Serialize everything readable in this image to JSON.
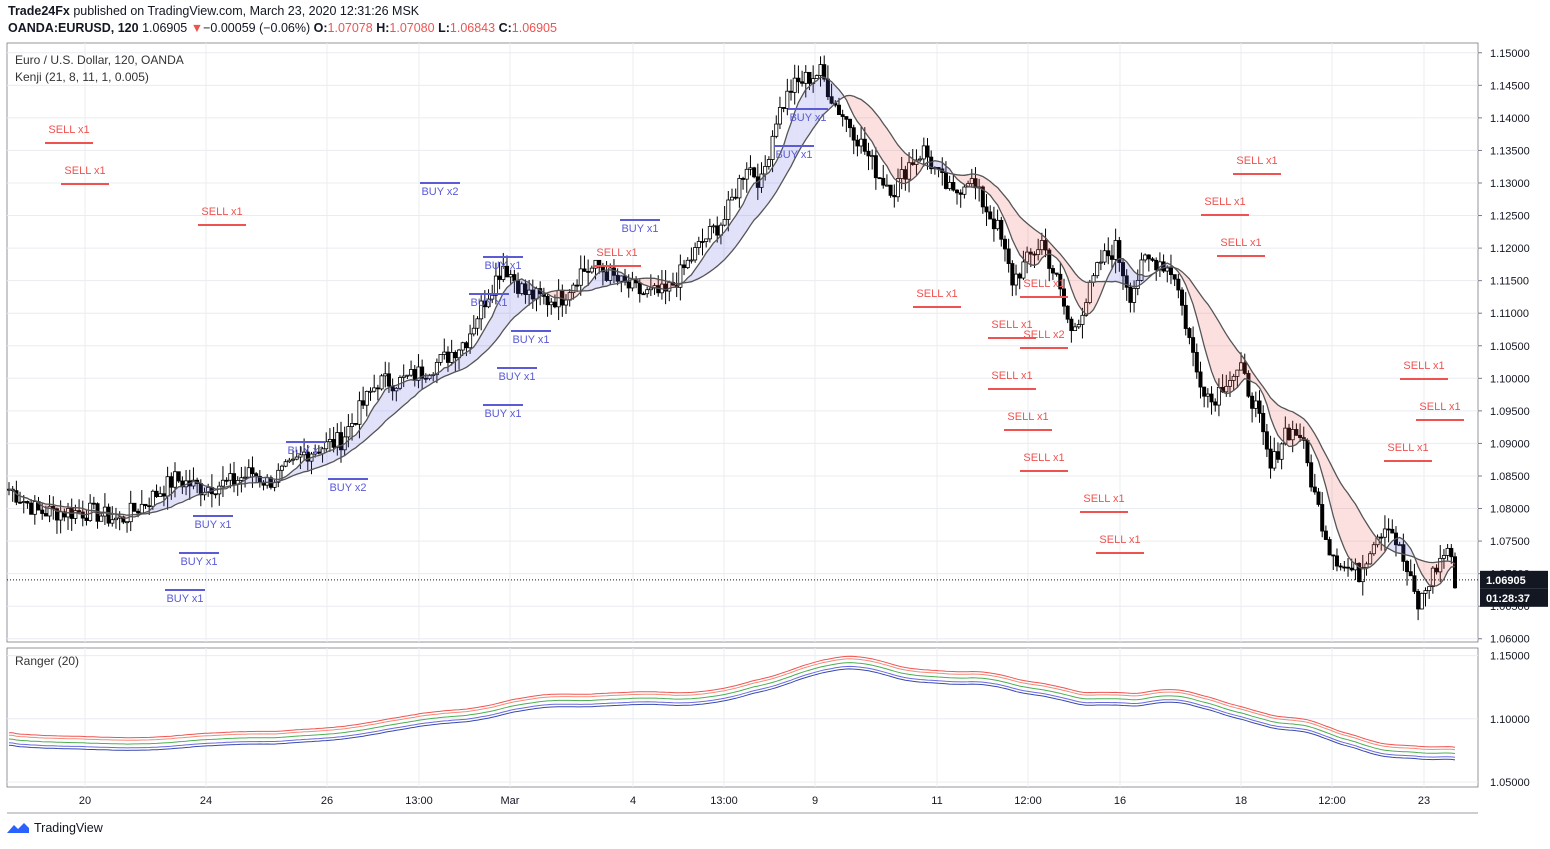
{
  "header": {
    "publisher": "Trade24Fx",
    "published_text": "published on TradingView.com, March 23, 2020 12:31:26 MSK",
    "symbol": "OANDA:EURUSD, 120",
    "last": "1.06905",
    "change_arrow": "▼",
    "change": "−0.00059 (−0.06%)",
    "o_label": "O:",
    "o_value": "1.07078",
    "h_label": "H:",
    "h_value": "1.07080",
    "l_label": "L:",
    "l_value": "1.06843",
    "c_label": "C:",
    "c_value": "1.06905"
  },
  "main_pane": {
    "title": "Euro / U.S. Dollar, 120, OANDA",
    "indicator": "Kenji (21, 8, 11, 1, 0.005)"
  },
  "sub_pane": {
    "indicator": "Ranger (20)"
  },
  "price_tag": {
    "value": "1.06905",
    "countdown": "01:28:37"
  },
  "footer": {
    "brand": "TradingView"
  },
  "colors": {
    "buy": "#5b5bd6",
    "sell": "#ef5350",
    "up_candle": "#ffffff",
    "down_candle": "#000000",
    "cloud_blue": "rgba(90,90,220,0.18)",
    "cloud_red": "rgba(239,83,80,0.18)",
    "cloud_green": "rgba(76,175,80,0.18)",
    "grid": "#e9ecf2"
  },
  "chart_data": [
    {
      "type": "candlestick",
      "title": "Euro / U.S. Dollar, 120, OANDA",
      "y_axis_ticks": [
        "1.15000",
        "1.14500",
        "1.14000",
        "1.13500",
        "1.13000",
        "1.12500",
        "1.12000",
        "1.11500",
        "1.11000",
        "1.10500",
        "1.10000",
        "1.09500",
        "1.09000",
        "1.08500",
        "1.08000",
        "1.07500",
        "1.07000",
        "1.06500",
        "1.06000"
      ],
      "ylim": [
        1.0595,
        1.1515
      ],
      "x_axis_ticks": [
        "20",
        "24",
        "26",
        "13:00",
        "Mar",
        "4",
        "13:00",
        "9",
        "11",
        "12:00",
        "16",
        "18",
        "12:00",
        "23"
      ],
      "last_price": 1.06905,
      "grid": true,
      "close_path": [
        [
          0,
          1.083
        ],
        [
          8,
          1.0795
        ],
        [
          22,
          1.0795
        ],
        [
          30,
          1.0782
        ],
        [
          36,
          1.0805
        ],
        [
          45,
          1.0845
        ],
        [
          52,
          1.0832
        ],
        [
          60,
          1.084
        ],
        [
          66,
          1.0855
        ],
        [
          70,
          1.084
        ],
        [
          77,
          1.0865
        ],
        [
          80,
          1.0885
        ],
        [
          85,
          1.0895
        ],
        [
          90,
          1.0905
        ],
        [
          96,
          1.096
        ],
        [
          100,
          1.0995
        ],
        [
          106,
          1.0995
        ],
        [
          112,
          1.101
        ],
        [
          118,
          1.103
        ],
        [
          124,
          1.106
        ],
        [
          128,
          1.111
        ],
        [
          134,
          1.1175
        ],
        [
          140,
          1.113
        ],
        [
          146,
          1.112
        ],
        [
          150,
          1.1125
        ],
        [
          155,
          1.1165
        ],
        [
          160,
          1.117
        ],
        [
          166,
          1.1145
        ],
        [
          172,
          1.113
        ],
        [
          178,
          1.113
        ],
        [
          182,
          1.116
        ],
        [
          188,
          1.121
        ],
        [
          194,
          1.1245
        ],
        [
          200,
          1.133
        ],
        [
          204,
          1.13
        ],
        [
          208,
          1.14
        ],
        [
          212,
          1.1445
        ],
        [
          216,
          1.146
        ],
        [
          220,
          1.147
        ],
        [
          224,
          1.142
        ],
        [
          228,
          1.139
        ],
        [
          232,
          1.135
        ],
        [
          236,
          1.131
        ],
        [
          240,
          1.129
        ],
        [
          244,
          1.133
        ],
        [
          248,
          1.135
        ],
        [
          252,
          1.131
        ],
        [
          256,
          1.128
        ],
        [
          260,
          1.131
        ],
        [
          264,
          1.127
        ],
        [
          268,
          1.123
        ],
        [
          272,
          1.115
        ],
        [
          276,
          1.118
        ],
        [
          280,
          1.121
        ],
        [
          284,
          1.115
        ],
        [
          288,
          1.107
        ],
        [
          292,
          1.112
        ],
        [
          296,
          1.118
        ],
        [
          300,
          1.12
        ],
        [
          304,
          1.113
        ],
        [
          308,
          1.118
        ],
        [
          312,
          1.118
        ],
        [
          316,
          1.116
        ],
        [
          318,
          1.111
        ],
        [
          322,
          1.101
        ],
        [
          326,
          1.0965
        ],
        [
          330,
          1.1
        ],
        [
          334,
          1.101
        ],
        [
          338,
          1.0955
        ],
        [
          342,
          1.086
        ],
        [
          346,
          1.092
        ],
        [
          350,
          1.0915
        ],
        [
          354,
          1.082
        ],
        [
          358,
          1.074
        ],
        [
          362,
          1.071
        ],
        [
          366,
          1.07
        ],
        [
          370,
          1.0755
        ],
        [
          374,
          1.078
        ],
        [
          378,
          1.072
        ],
        [
          382,
          1.065
        ],
        [
          386,
          1.07
        ],
        [
          390,
          1.074
        ],
        [
          392,
          1.069
        ]
      ],
      "signals": {
        "buy": [
          {
            "label": "BUY x1",
            "x": "24"
          },
          {
            "label": "BUY x1",
            "x": "24"
          },
          {
            "label": "BUY x1",
            "x": "24"
          },
          {
            "label": "BUY x2",
            "x": "26"
          },
          {
            "label": "BUY x1",
            "x": "26"
          },
          {
            "label": "BUY x1",
            "x": "Mar"
          },
          {
            "label": "BUY x1",
            "x": "Mar"
          },
          {
            "label": "BUY x1",
            "x": "Mar"
          },
          {
            "label": "BUY x1",
            "x": "Mar"
          },
          {
            "label": "BUY x1",
            "x": "Mar"
          },
          {
            "label": "BUY x1",
            "x": "4"
          },
          {
            "label": "BUY x2",
            "x": "13:00"
          },
          {
            "label": "BUY x1",
            "x": "9"
          },
          {
            "label": "BUY x1",
            "x": "9"
          }
        ],
        "sell": [
          {
            "label": "SELL x1",
            "x": "20"
          },
          {
            "label": "SELL x1",
            "x": "20"
          },
          {
            "label": "SELL x1",
            "x": "24"
          },
          {
            "label": "SELL x1",
            "x": "4"
          },
          {
            "label": "SELL x1",
            "x": "11"
          },
          {
            "label": "SELL x2",
            "x": "12:00"
          },
          {
            "label": "SELL x1",
            "x": "12:00"
          },
          {
            "label": "SELL x1",
            "x": "12:00"
          },
          {
            "label": "SELL x1",
            "x": "12:00"
          },
          {
            "label": "SELL x1",
            "x": "16"
          },
          {
            "label": "SELL x1",
            "x": "16"
          },
          {
            "label": "SELL x1",
            "x": "18"
          },
          {
            "label": "SELL x1",
            "x": "18"
          },
          {
            "label": "SELL x1",
            "x": "18"
          },
          {
            "label": "SELL x1",
            "x": "12:00"
          },
          {
            "label": "SELL x1",
            "x": "12:00"
          },
          {
            "label": "SELL x1",
            "x": "23"
          },
          {
            "label": "SELL x1",
            "x": "23"
          },
          {
            "label": "SELL x1",
            "x": "23"
          }
        ]
      }
    },
    {
      "type": "line",
      "title": "Ranger (20)",
      "y_axis_ticks": [
        "1.15000",
        "1.10000",
        "1.05000"
      ],
      "ylim": [
        1.046,
        1.156
      ],
      "series": [
        {
          "color": "#ef5350",
          "offset": 0.006
        },
        {
          "color": "#f28b7a",
          "offset": 0.004
        },
        {
          "color": "#4caf50",
          "offset": 0.001
        },
        {
          "color": "#6a6ae0",
          "offset": -0.002
        },
        {
          "color": "#3949ab",
          "offset": -0.004
        }
      ]
    }
  ]
}
